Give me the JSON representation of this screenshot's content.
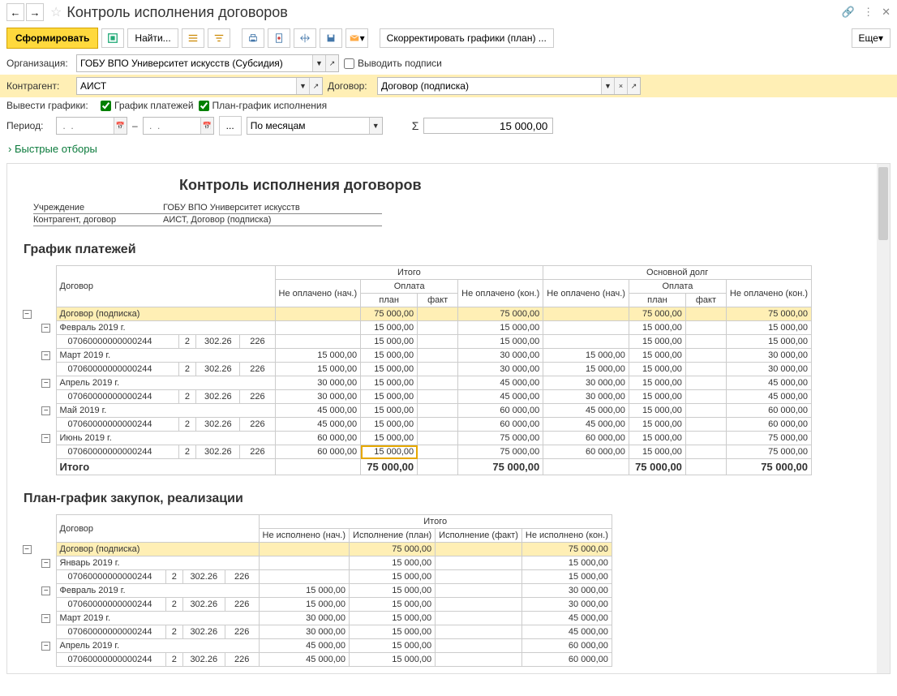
{
  "title": "Контроль исполнения договоров",
  "toolbar": {
    "generate": "Сформировать",
    "find": "Найти...",
    "adjust": "Скорректировать графики (план) ...",
    "more": "Еще"
  },
  "filters": {
    "org_label": "Организация:",
    "org_value": "ГОБУ ВПО Университет искусств (Субсидия)",
    "sign_label": "Выводить подписи",
    "agent_label": "Контрагент:",
    "agent_value": "АИСТ",
    "contract_label": "Договор:",
    "contract_value": "Договор (подписка)",
    "sched_label": "Вывести графики:",
    "sched_pay": "График платежей",
    "sched_plan": "План-график исполнения",
    "period_label": "Период:",
    "period_units": "По месяцам",
    "sum": "15 000,00"
  },
  "quick": "Быстрые отборы",
  "report": {
    "title": "Контроль исполнения договоров",
    "meta_inst_k": "Учреждение",
    "meta_inst_v": "ГОБУ ВПО Университет искусств",
    "meta_agent_k": "Контрагент, договор",
    "meta_agent_v": "АИСТ, Договор (подписка)"
  },
  "t1": {
    "title": "График платежей",
    "h": {
      "col0": "Договор",
      "itogo": "Итого",
      "debt": "Основной долг",
      "nb": "Не оплачено (нач.)",
      "pay": "Оплата",
      "plan": "план",
      "fact": "факт",
      "ne": "Не оплачено (кон.)",
      "total": "Итого"
    },
    "rows": [
      {
        "type": "hl",
        "name": "Договор (подписка)",
        "plan": "75 000,00",
        "ne": "75 000,00",
        "plan2": "75 000,00",
        "ne2": "75 000,00"
      },
      {
        "type": "grp",
        "tree": "−",
        "name": "Февраль 2019 г.",
        "plan": "15 000,00",
        "ne": "15 000,00",
        "plan2": "15 000,00",
        "ne2": "15 000,00"
      },
      {
        "type": "det",
        "name": "07060000000000244",
        "c1": "2",
        "c2": "302.26",
        "c3": "226",
        "plan": "15 000,00",
        "ne": "15 000,00",
        "plan2": "15 000,00",
        "ne2": "15 000,00"
      },
      {
        "type": "grp",
        "tree": "−",
        "name": "Март 2019 г.",
        "nb": "15 000,00",
        "plan": "15 000,00",
        "ne": "30 000,00",
        "nb2": "15 000,00",
        "plan2": "15 000,00",
        "ne2": "30 000,00"
      },
      {
        "type": "det",
        "name": "07060000000000244",
        "c1": "2",
        "c2": "302.26",
        "c3": "226",
        "nb": "15 000,00",
        "plan": "15 000,00",
        "ne": "30 000,00",
        "nb2": "15 000,00",
        "plan2": "15 000,00",
        "ne2": "30 000,00"
      },
      {
        "type": "grp",
        "tree": "−",
        "name": "Апрель 2019 г.",
        "nb": "30 000,00",
        "plan": "15 000,00",
        "ne": "45 000,00",
        "nb2": "30 000,00",
        "plan2": "15 000,00",
        "ne2": "45 000,00"
      },
      {
        "type": "det",
        "name": "07060000000000244",
        "c1": "2",
        "c2": "302.26",
        "c3": "226",
        "nb": "30 000,00",
        "plan": "15 000,00",
        "ne": "45 000,00",
        "nb2": "30 000,00",
        "plan2": "15 000,00",
        "ne2": "45 000,00"
      },
      {
        "type": "grp",
        "tree": "−",
        "name": "Май 2019 г.",
        "nb": "45 000,00",
        "plan": "15 000,00",
        "ne": "60 000,00",
        "nb2": "45 000,00",
        "plan2": "15 000,00",
        "ne2": "60 000,00"
      },
      {
        "type": "det",
        "name": "07060000000000244",
        "c1": "2",
        "c2": "302.26",
        "c3": "226",
        "nb": "45 000,00",
        "plan": "15 000,00",
        "ne": "60 000,00",
        "nb2": "45 000,00",
        "plan2": "15 000,00",
        "ne2": "60 000,00"
      },
      {
        "type": "grp",
        "tree": "−",
        "name": "Июнь 2019 г.",
        "nb": "60 000,00",
        "plan": "15 000,00",
        "ne": "75 000,00",
        "nb2": "60 000,00",
        "plan2": "15 000,00",
        "ne2": "75 000,00"
      },
      {
        "type": "det",
        "name": "07060000000000244",
        "c1": "2",
        "c2": "302.26",
        "c3": "226",
        "nb": "60 000,00",
        "plan": "15 000,00",
        "ne": "75 000,00",
        "nb2": "60 000,00",
        "plan2": "15 000,00",
        "ne2": "75 000,00",
        "sel": true
      }
    ],
    "total": {
      "plan": "75 000,00",
      "ne": "75 000,00",
      "plan2": "75 000,00",
      "ne2": "75 000,00"
    }
  },
  "t2": {
    "title": "План-график закупок, реализации",
    "h": {
      "col0": "Договор",
      "itogo": "Итого",
      "nb": "Не исполнено (нач.)",
      "plan": "Исполнение (план)",
      "fact": "Исполнение (факт)",
      "ne": "Не исполнено (кон.)"
    },
    "rows": [
      {
        "type": "hl",
        "name": "Договор (подписка)",
        "plan": "75 000,00",
        "ne": "75 000,00"
      },
      {
        "type": "grp",
        "tree": "−",
        "name": "Январь 2019 г.",
        "plan": "15 000,00",
        "ne": "15 000,00"
      },
      {
        "type": "det",
        "name": "07060000000000244",
        "c1": "2",
        "c2": "302.26",
        "c3": "226",
        "plan": "15 000,00",
        "ne": "15 000,00"
      },
      {
        "type": "grp",
        "tree": "−",
        "name": "Февраль 2019 г.",
        "nb": "15 000,00",
        "plan": "15 000,00",
        "ne": "30 000,00"
      },
      {
        "type": "det",
        "name": "07060000000000244",
        "c1": "2",
        "c2": "302.26",
        "c3": "226",
        "nb": "15 000,00",
        "plan": "15 000,00",
        "ne": "30 000,00"
      },
      {
        "type": "grp",
        "tree": "−",
        "name": "Март 2019 г.",
        "nb": "30 000,00",
        "plan": "15 000,00",
        "ne": "45 000,00"
      },
      {
        "type": "det",
        "name": "07060000000000244",
        "c1": "2",
        "c2": "302.26",
        "c3": "226",
        "nb": "30 000,00",
        "plan": "15 000,00",
        "ne": "45 000,00"
      },
      {
        "type": "grp",
        "tree": "−",
        "name": "Апрель 2019 г.",
        "nb": "45 000,00",
        "plan": "15 000,00",
        "ne": "60 000,00"
      },
      {
        "type": "det",
        "name": "07060000000000244",
        "c1": "2",
        "c2": "302.26",
        "c3": "226",
        "nb": "45 000,00",
        "plan": "15 000,00",
        "ne": "60 000,00"
      }
    ]
  },
  "colors": {
    "accent": "#ffd93d",
    "hl": "#ffefb5",
    "green": "#0a7a3b"
  }
}
